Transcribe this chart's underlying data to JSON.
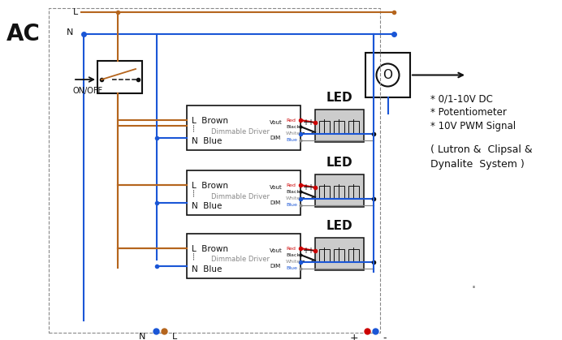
{
  "bg_color": "#ffffff",
  "color_brown": "#b5651d",
  "color_blue": "#1a56d6",
  "color_black": "#111111",
  "color_red": "#cc0000",
  "color_gray": "#888888",
  "color_ltgray": "#cccccc",
  "lw_main": 1.5,
  "fig_w": 6.92,
  "fig_h": 4.19,
  "dpi": 100,
  "annotations_right": [
    "* 0/1-10V DC",
    "* Potentiometer",
    "* 10V PWM Signal",
    "( Lutron &  Clipsal &",
    "Dynalite  System )"
  ]
}
